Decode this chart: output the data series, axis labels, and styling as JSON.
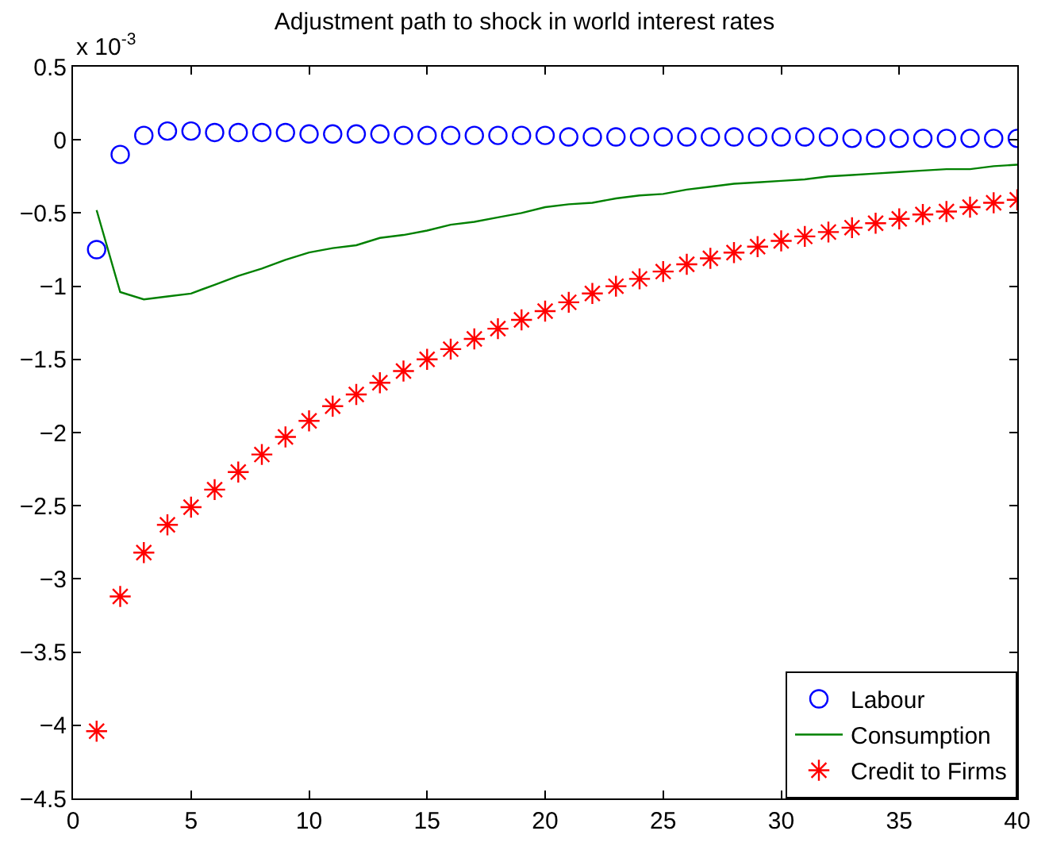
{
  "chart_data": {
    "type": "scatter",
    "title": "Adjustment path to shock in world interest rates",
    "annotations": [
      "x 10$^{-3}$"
    ],
    "x": [
      1,
      2,
      3,
      4,
      5,
      6,
      7,
      8,
      9,
      10,
      11,
      12,
      13,
      14,
      15,
      16,
      17,
      18,
      19,
      20,
      21,
      22,
      23,
      24,
      25,
      26,
      27,
      28,
      29,
      30,
      31,
      32,
      33,
      34,
      35,
      36,
      37,
      38,
      39,
      40
    ],
    "series": [
      {
        "name": "Labour",
        "color": "#0000ff",
        "marker": "circle",
        "values": [
          -0.75,
          -0.1,
          0.03,
          0.06,
          0.06,
          0.05,
          0.05,
          0.05,
          0.05,
          0.04,
          0.04,
          0.04,
          0.04,
          0.03,
          0.03,
          0.03,
          0.03,
          0.03,
          0.03,
          0.03,
          0.02,
          0.02,
          0.02,
          0.02,
          0.02,
          0.02,
          0.02,
          0.02,
          0.02,
          0.02,
          0.02,
          0.02,
          0.01,
          0.01,
          0.01,
          0.01,
          0.01,
          0.01,
          0.01,
          0.01
        ]
      },
      {
        "name": "Consumption",
        "color": "#008000",
        "type": "line",
        "line_style": "solid",
        "marker": "none",
        "values": [
          -0.48,
          -1.04,
          -1.09,
          -1.07,
          -1.05,
          -0.99,
          -0.93,
          -0.88,
          -0.82,
          -0.77,
          -0.74,
          -0.72,
          -0.67,
          -0.65,
          -0.62,
          -0.58,
          -0.56,
          -0.53,
          -0.5,
          -0.46,
          -0.44,
          -0.43,
          -0.4,
          -0.38,
          -0.37,
          -0.34,
          -0.32,
          -0.3,
          -0.29,
          -0.28,
          -0.27,
          -0.25,
          -0.24,
          -0.23,
          -0.22,
          -0.21,
          -0.2,
          -0.2,
          -0.18,
          -0.17
        ]
      },
      {
        "name": "Credit to Firms",
        "color": "#ff0000",
        "marker": "cross",
        "values": [
          -4.04,
          -3.12,
          -2.82,
          -2.63,
          -2.51,
          -2.39,
          -2.27,
          -2.15,
          -2.03,
          -1.92,
          -1.82,
          -1.74,
          -1.66,
          -1.58,
          -1.5,
          -1.43,
          -1.36,
          -1.29,
          -1.23,
          -1.17,
          -1.11,
          -1.05,
          -1.0,
          -0.95,
          -0.9,
          -0.85,
          -0.81,
          -0.77,
          -0.73,
          -0.69,
          -0.66,
          -0.63,
          -0.6,
          -0.57,
          -0.54,
          -0.51,
          -0.49,
          -0.46,
          -0.43,
          -0.41
        ]
      }
    ],
    "xlim": [
      0,
      40
    ],
    "xticks": [
      0,
      5,
      10,
      15,
      20,
      25,
      30,
      35,
      40
    ],
    "ylim": [
      -4.5,
      0.5
    ],
    "yticks": [
      {
        "value": -4.5,
        "label": "−4.5"
      },
      {
        "value": -4,
        "label": "−4"
      },
      {
        "value": -3.5,
        "label": "−3.5"
      },
      {
        "value": -3,
        "label": "−3"
      },
      {
        "value": -2.5,
        "label": "−2.5"
      },
      {
        "value": -2,
        "label": "−2"
      },
      {
        "value": -1.5,
        "label": "−1.5"
      },
      {
        "value": -1,
        "label": "−1"
      },
      {
        "value": -0.5,
        "label": "−0.5"
      },
      0,
      0.5
    ],
    "legend": "bottom right"
  }
}
